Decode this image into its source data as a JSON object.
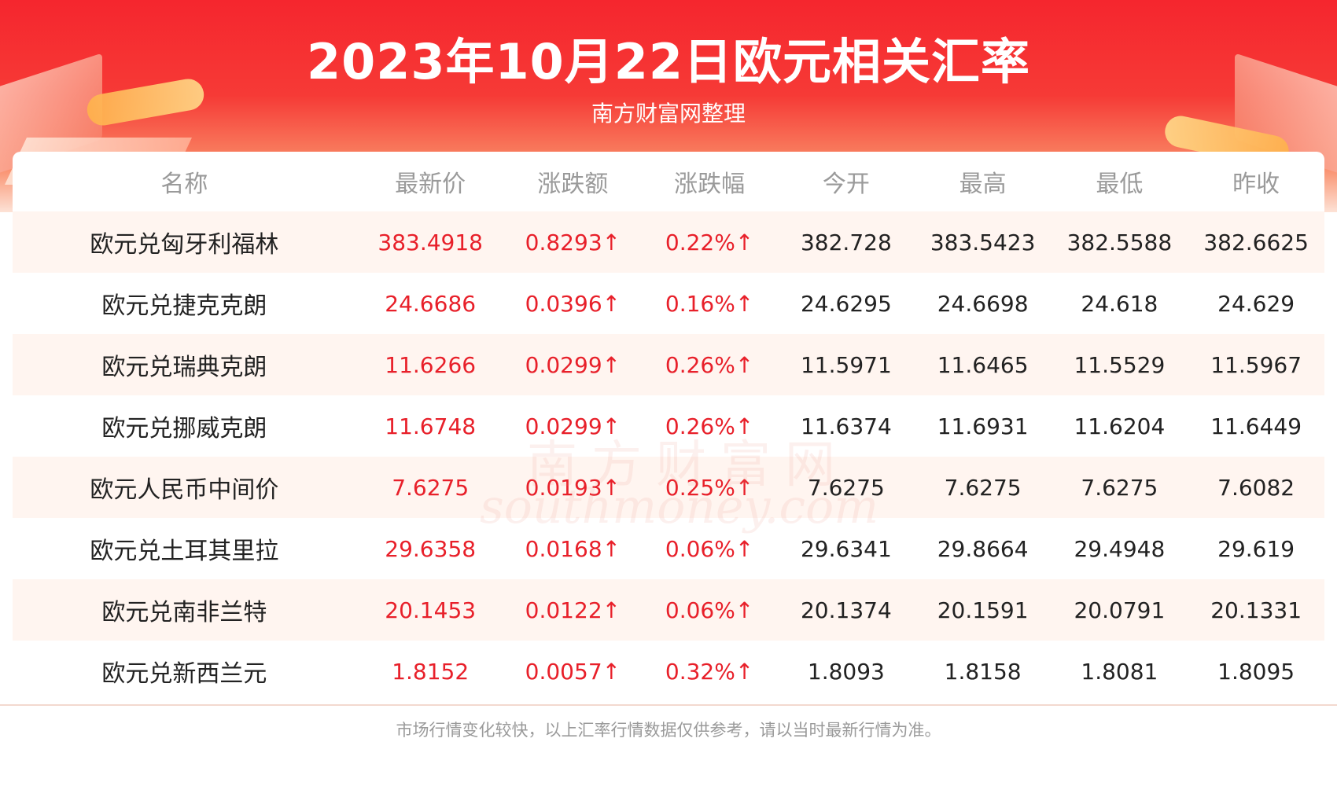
{
  "header": {
    "title": "2023年10月22日欧元相关汇率",
    "subtitle": "南方财富网整理"
  },
  "colors": {
    "header_red": "#f5262e",
    "up_red": "#e8202a",
    "alt_row": "#fff5f0"
  },
  "table": {
    "columns": [
      "名称",
      "最新价",
      "涨跌额",
      "涨跌幅",
      "今开",
      "最高",
      "最低",
      "昨收"
    ],
    "rows": [
      {
        "name": "欧元兑匈牙利福林",
        "latest": "383.4918",
        "change": "0.8293↑",
        "pct": "0.22%↑",
        "open": "382.728",
        "high": "383.5423",
        "low": "382.5588",
        "prev": "382.6625"
      },
      {
        "name": "欧元兑捷克克朗",
        "latest": "24.6686",
        "change": "0.0396↑",
        "pct": "0.16%↑",
        "open": "24.6295",
        "high": "24.6698",
        "low": "24.618",
        "prev": "24.629"
      },
      {
        "name": "欧元兑瑞典克朗",
        "latest": "11.6266",
        "change": "0.0299↑",
        "pct": "0.26%↑",
        "open": "11.5971",
        "high": "11.6465",
        "low": "11.5529",
        "prev": "11.5967"
      },
      {
        "name": "欧元兑挪威克朗",
        "latest": "11.6748",
        "change": "0.0299↑",
        "pct": "0.26%↑",
        "open": "11.6374",
        "high": "11.6931",
        "low": "11.6204",
        "prev": "11.6449"
      },
      {
        "name": "欧元人民币中间价",
        "latest": "7.6275",
        "change": "0.0193↑",
        "pct": "0.25%↑",
        "open": "7.6275",
        "high": "7.6275",
        "low": "7.6275",
        "prev": "7.6082"
      },
      {
        "name": "欧元兑土耳其里拉",
        "latest": "29.6358",
        "change": "0.0168↑",
        "pct": "0.06%↑",
        "open": "29.6341",
        "high": "29.8664",
        "low": "29.4948",
        "prev": "29.619"
      },
      {
        "name": "欧元兑南非兰特",
        "latest": "20.1453",
        "change": "0.0122↑",
        "pct": "0.06%↑",
        "open": "20.1374",
        "high": "20.1591",
        "low": "20.0791",
        "prev": "20.1331"
      },
      {
        "name": "欧元兑新西兰元",
        "latest": "1.8152",
        "change": "0.0057↑",
        "pct": "0.32%↑",
        "open": "1.8093",
        "high": "1.8158",
        "low": "1.8081",
        "prev": "1.8095"
      }
    ]
  },
  "watermark": {
    "cn": "南方财富网",
    "en": "southmoney.com"
  },
  "footer": {
    "disclaimer": "市场行情变化较快，以上汇率行情数据仅供参考，请以当时最新行情为准。"
  }
}
